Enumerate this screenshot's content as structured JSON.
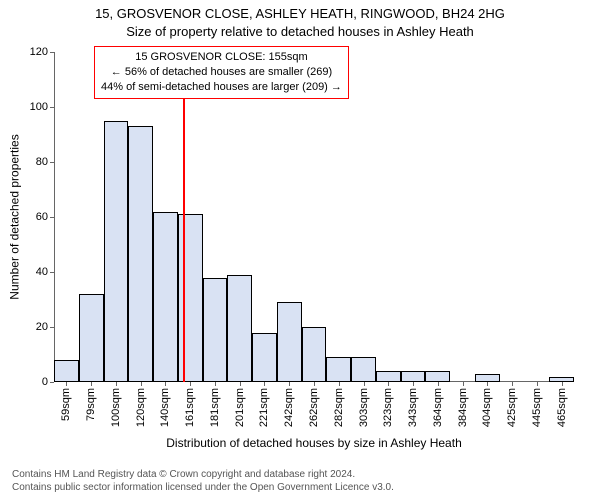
{
  "header": {
    "address_line": "15, GROSVENOR CLOSE, ASHLEY HEATH, RINGWOOD, BH24 2HG",
    "subtitle": "Size of property relative to detached houses in Ashley Heath"
  },
  "chart": {
    "type": "histogram",
    "ylabel": "Number of detached properties",
    "xlabel": "Distribution of detached houses by size in Ashley Heath",
    "ylim": [
      0,
      120
    ],
    "yticks": [
      0,
      20,
      40,
      60,
      80,
      100,
      120
    ],
    "xtick_labels": [
      "59sqm",
      "79sqm",
      "100sqm",
      "120sqm",
      "140sqm",
      "161sqm",
      "181sqm",
      "201sqm",
      "221sqm",
      "242sqm",
      "262sqm",
      "282sqm",
      "303sqm",
      "323sqm",
      "343sqm",
      "364sqm",
      "384sqm",
      "404sqm",
      "425sqm",
      "445sqm",
      "465sqm"
    ],
    "bars": [
      8,
      32,
      95,
      93,
      62,
      61,
      38,
      39,
      18,
      29,
      20,
      9,
      9,
      4,
      4,
      4,
      0,
      3,
      0,
      0,
      2
    ],
    "bar_fill": "#d9e2f3",
    "bar_stroke": "#000000",
    "axis_color": "#666666",
    "ref_line": {
      "value_sqm": 155,
      "color": "#ff0000",
      "width": 2
    },
    "annotation": {
      "border_color": "#ff0000",
      "lines": [
        "15 GROSVENOR CLOSE: 155sqm",
        "← 56% of detached houses are smaller (269)",
        "44% of semi-detached houses are larger (209) →"
      ]
    }
  },
  "footer": {
    "line1": "Contains HM Land Registry data © Crown copyright and database right 2024.",
    "line2": "Contains public sector information licensed under the Open Government Licence v3.0."
  }
}
